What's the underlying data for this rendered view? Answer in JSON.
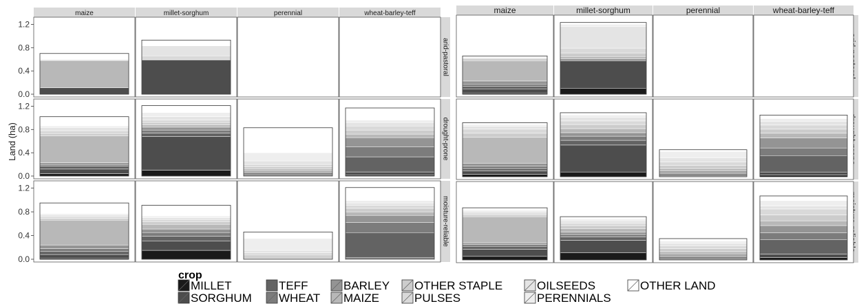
{
  "ylabel": "Land (ha)",
  "legend": {
    "title": "crop",
    "columns": [
      [
        {
          "name": "MILLET",
          "color": "#1a1a1a"
        },
        {
          "name": "SORGHUM",
          "color": "#4d4d4d"
        }
      ],
      [
        {
          "name": "TEFF",
          "color": "#636363"
        },
        {
          "name": "WHEAT",
          "color": "#7c7c7c"
        }
      ],
      [
        {
          "name": "BARLEY",
          "color": "#949494"
        },
        {
          "name": "MAIZE",
          "color": "#b8b8b8"
        }
      ],
      [
        {
          "name": "OTHER STAPLE",
          "color": "#cccccc"
        },
        {
          "name": "PULSES",
          "color": "#d9d9d9"
        }
      ],
      [
        {
          "name": "OILSEEDS",
          "color": "#e4e4e4"
        },
        {
          "name": "PERENNIALS",
          "color": "#eeeeee"
        }
      ],
      [
        {
          "name": "OTHER LAND",
          "color": "#ffffff"
        }
      ]
    ]
  },
  "chart_data": [
    {
      "type": "bar",
      "stacked": true,
      "facets": {
        "columns": [
          "maize",
          "millet-sorghum",
          "perennial",
          "wheat-barley-teff"
        ],
        "rows": [
          "arid-pastoral",
          "drought-prone",
          "moisture-reliable"
        ]
      },
      "ylim": [
        0,
        1.3
      ],
      "yticks": [
        0.0,
        0.4,
        0.8,
        1.2
      ],
      "ytick_labels": [
        "0.0",
        "0.4",
        "0.8",
        "1.2"
      ],
      "stack_order": [
        "MILLET",
        "SORGHUM",
        "TEFF",
        "WHEAT",
        "BARLEY",
        "MAIZE",
        "OTHER STAPLE",
        "PULSES",
        "OILSEEDS",
        "PERENNIALS",
        "OTHER LAND"
      ],
      "cells": [
        [
          {
            "MILLET": 0.0,
            "SORGHUM": 0.11,
            "TEFF": 0.0,
            "WHEAT": 0.0,
            "BARLEY": 0.0,
            "MAIZE": 0.47,
            "OTHER STAPLE": 0.0,
            "PULSES": 0.0,
            "OILSEEDS": 0.0,
            "PERENNIALS": 0.02,
            "OTHER LAND": 0.1
          },
          {
            "MILLET": 0.0,
            "SORGHUM": 0.59,
            "TEFF": 0.0,
            "WHEAT": 0.0,
            "BARLEY": 0.0,
            "MAIZE": 0.01,
            "OTHER STAPLE": 0.0,
            "PULSES": 0.06,
            "OILSEEDS": 0.17,
            "PERENNIALS": 0.0,
            "OTHER LAND": 0.1
          },
          null,
          null
        ],
        [
          {
            "MILLET": 0.04,
            "SORGHUM": 0.08,
            "TEFF": 0.05,
            "WHEAT": 0.03,
            "BARLEY": 0.03,
            "MAIZE": 0.46,
            "OTHER STAPLE": 0.04,
            "PULSES": 0.05,
            "OILSEEDS": 0.05,
            "PERENNIALS": 0.03,
            "OTHER LAND": 0.16
          },
          {
            "MILLET": 0.1,
            "SORGHUM": 0.58,
            "TEFF": 0.06,
            "WHEAT": 0.05,
            "BARLEY": 0.05,
            "MAIZE": 0.04,
            "OTHER STAPLE": 0.04,
            "PULSES": 0.04,
            "OILSEEDS": 0.06,
            "PERENNIALS": 0.07,
            "OTHER LAND": 0.12
          },
          {
            "MILLET": 0.01,
            "SORGHUM": 0.02,
            "TEFF": 0.02,
            "WHEAT": 0.02,
            "BARLEY": 0.02,
            "MAIZE": 0.03,
            "OTHER STAPLE": 0.04,
            "PULSES": 0.04,
            "OILSEEDS": 0.06,
            "PERENNIALS": 0.14,
            "OTHER LAND": 0.43
          },
          {
            "MILLET": 0.02,
            "SORGHUM": 0.05,
            "TEFF": 0.26,
            "WHEAT": 0.17,
            "BARLEY": 0.16,
            "MAIZE": 0.06,
            "OTHER STAPLE": 0.07,
            "PULSES": 0.07,
            "OILSEEDS": 0.06,
            "PERENNIALS": 0.04,
            "OTHER LAND": 0.21
          }
        ],
        [
          {
            "MILLET": 0.02,
            "SORGHUM": 0.06,
            "TEFF": 0.05,
            "WHEAT": 0.05,
            "BARLEY": 0.06,
            "MAIZE": 0.42,
            "OTHER STAPLE": 0.03,
            "PULSES": 0.03,
            "OILSEEDS": 0.03,
            "PERENNIALS": 0.02,
            "OTHER LAND": 0.18
          },
          {
            "MILLET": 0.15,
            "SORGHUM": 0.16,
            "TEFF": 0.08,
            "WHEAT": 0.06,
            "BARLEY": 0.06,
            "MAIZE": 0.08,
            "OTHER STAPLE": 0.04,
            "PULSES": 0.04,
            "OILSEEDS": 0.03,
            "PERENNIALS": 0.03,
            "OTHER LAND": 0.18
          },
          {
            "MILLET": 0.0,
            "SORGHUM": 0.0,
            "TEFF": 0.01,
            "WHEAT": 0.01,
            "BARLEY": 0.01,
            "MAIZE": 0.02,
            "OTHER STAPLE": 0.03,
            "PULSES": 0.03,
            "OILSEEDS": 0.04,
            "PERENNIALS": 0.2,
            "OTHER LAND": 0.11
          },
          {
            "MILLET": 0.01,
            "SORGHUM": 0.02,
            "TEFF": 0.42,
            "WHEAT": 0.17,
            "BARLEY": 0.12,
            "MAIZE": 0.06,
            "OTHER STAPLE": 0.06,
            "PULSES": 0.05,
            "OILSEEDS": 0.04,
            "PERENNIALS": 0.04,
            "OTHER LAND": 0.22
          }
        ]
      ]
    },
    {
      "type": "bar",
      "stacked": true,
      "facets": {
        "columns": [
          "maize",
          "millet-sorghum",
          "perennial",
          "wheat-barley-teff"
        ],
        "rows": [
          "arid-pastoral",
          "drought-prone",
          "moisture-reliable"
        ]
      },
      "ylim": [
        0,
        1.3
      ],
      "stack_order": [
        "MILLET",
        "SORGHUM",
        "TEFF",
        "WHEAT",
        "BARLEY",
        "MAIZE",
        "OTHER STAPLE",
        "PULSES",
        "OILSEEDS",
        "PERENNIALS",
        "OTHER LAND"
      ],
      "cells": [
        [
          {
            "MILLET": 0.02,
            "SORGHUM": 0.07,
            "TEFF": 0.04,
            "WHEAT": 0.04,
            "BARLEY": 0.05,
            "MAIZE": 0.34,
            "OTHER STAPLE": 0.03,
            "PULSES": 0.02,
            "OILSEEDS": 0.01,
            "PERENNIALS": 0.01,
            "OTHER LAND": 0.01
          },
          {
            "MILLET": 0.1,
            "SORGHUM": 0.46,
            "TEFF": 0.0,
            "WHEAT": 0.0,
            "BARLEY": 0.03,
            "MAIZE": 0.04,
            "OTHER STAPLE": 0.06,
            "PULSES": 0.08,
            "OILSEEDS": 0.36,
            "PERENNIALS": 0.04,
            "OTHER LAND": 0.03
          },
          null,
          null
        ],
        [
          {
            "MILLET": 0.04,
            "SORGHUM": 0.06,
            "TEFF": 0.04,
            "WHEAT": 0.04,
            "BARLEY": 0.05,
            "MAIZE": 0.44,
            "OTHER STAPLE": 0.07,
            "PULSES": 0.07,
            "OILSEEDS": 0.05,
            "PERENNIALS": 0.03,
            "OTHER LAND": 0.03
          },
          {
            "MILLET": 0.08,
            "SORGHUM": 0.46,
            "TEFF": 0.08,
            "WHEAT": 0.07,
            "BARLEY": 0.06,
            "MAIZE": 0.07,
            "OTHER STAPLE": 0.07,
            "PULSES": 0.06,
            "OILSEEDS": 0.06,
            "PERENNIALS": 0.04,
            "OTHER LAND": 0.04
          },
          {
            "MILLET": 0.01,
            "SORGHUM": 0.02,
            "TEFF": 0.02,
            "WHEAT": 0.02,
            "BARLEY": 0.03,
            "MAIZE": 0.04,
            "OTHER STAPLE": 0.05,
            "PULSES": 0.06,
            "OILSEEDS": 0.07,
            "PERENNIALS": 0.11,
            "OTHER LAND": 0.03
          },
          {
            "MILLET": 0.03,
            "SORGHUM": 0.05,
            "TEFF": 0.28,
            "WHEAT": 0.13,
            "BARLEY": 0.17,
            "MAIZE": 0.08,
            "OTHER STAPLE": 0.07,
            "PULSES": 0.07,
            "OILSEEDS": 0.06,
            "PERENNIALS": 0.05,
            "OTHER LAND": 0.06
          }
        ],
        [
          {
            "MILLET": 0.06,
            "SORGHUM": 0.12,
            "TEFF": 0.05,
            "WHEAT": 0.03,
            "BARLEY": 0.03,
            "MAIZE": 0.44,
            "OTHER STAPLE": 0.03,
            "PULSES": 0.03,
            "OILSEEDS": 0.03,
            "PERENNIALS": 0.02,
            "OTHER LAND": 0.04
          },
          {
            "MILLET": 0.12,
            "SORGHUM": 0.21,
            "TEFF": 0.06,
            "WHEAT": 0.04,
            "BARLEY": 0.04,
            "MAIZE": 0.06,
            "OTHER STAPLE": 0.05,
            "PULSES": 0.04,
            "OILSEEDS": 0.04,
            "PERENNIALS": 0.03,
            "OTHER LAND": 0.04
          },
          {
            "MILLET": 0.01,
            "SORGHUM": 0.02,
            "TEFF": 0.02,
            "WHEAT": 0.02,
            "BARLEY": 0.03,
            "MAIZE": 0.04,
            "OTHER STAPLE": 0.05,
            "PULSES": 0.05,
            "OILSEEDS": 0.04,
            "PERENNIALS": 0.04,
            "OTHER LAND": 0.04
          },
          {
            "MILLET": 0.04,
            "SORGHUM": 0.06,
            "TEFF": 0.24,
            "WHEAT": 0.12,
            "BARLEY": 0.12,
            "MAIZE": 0.08,
            "OTHER STAPLE": 0.1,
            "PULSES": 0.1,
            "OILSEEDS": 0.05,
            "PERENNIALS": 0.09,
            "OTHER LAND": 0.08
          }
        ]
      ]
    }
  ]
}
